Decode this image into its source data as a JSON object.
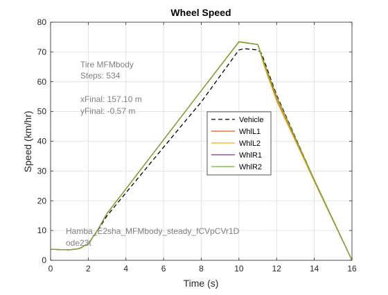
{
  "colors": {
    "background": "#ffffff",
    "axis": "#262626",
    "grid": "#dcdcdc",
    "annotation": "#808080",
    "vehicle": "#000000",
    "WhlL1": "#d95319",
    "WhlL2": "#edb120",
    "WhlR1": "#7e2f8e",
    "WhlR2": "#77ac30"
  },
  "annotations": {
    "tire": "Tire MFMbody",
    "steps": "Steps: 534",
    "xfinal": "xFinal: 157.10 m",
    "yfinal": "yFinal: -0.57 m",
    "model": "Hamba_E2sha_MFMbody_steady_fCVpCVr1D",
    "solver": "ode23t"
  },
  "chart_data": {
    "type": "line",
    "title": "Wheel Speed",
    "xlabel": "Time (s)",
    "ylabel": "Speed (km/hr)",
    "xlim": [
      0,
      16
    ],
    "ylim": [
      0,
      80
    ],
    "xticks": [
      0,
      2,
      4,
      6,
      8,
      10,
      12,
      14,
      16
    ],
    "yticks": [
      0,
      10,
      20,
      30,
      40,
      50,
      60,
      70,
      80
    ],
    "grid": true,
    "legend_position": "center-right",
    "series": [
      {
        "name": "Vehicle",
        "style": "dashed",
        "color": "#000000",
        "points": [
          [
            0,
            3.7
          ],
          [
            0.5,
            3.6
          ],
          [
            1.0,
            3.5
          ],
          [
            1.5,
            3.9
          ],
          [
            2.0,
            5.5
          ],
          [
            2.5,
            10.0
          ],
          [
            3.0,
            15.0
          ],
          [
            4.0,
            22.7
          ],
          [
            6.0,
            38.0
          ],
          [
            8.0,
            53.2
          ],
          [
            10.0,
            70.7
          ],
          [
            10.3,
            71.1
          ],
          [
            11.0,
            70.7
          ],
          [
            11.2,
            69.5
          ],
          [
            12.0,
            55.5
          ],
          [
            14.0,
            27.0
          ],
          [
            16.0,
            0.0
          ]
        ]
      },
      {
        "name": "WhlL1",
        "style": "solid",
        "color": "#d95319",
        "points": [
          [
            0,
            3.7
          ],
          [
            0.5,
            3.6
          ],
          [
            1.0,
            3.5
          ],
          [
            1.5,
            3.9
          ],
          [
            2.0,
            5.5
          ],
          [
            2.5,
            10.2
          ],
          [
            3.0,
            15.8
          ],
          [
            4.0,
            24.0
          ],
          [
            6.0,
            40.5
          ],
          [
            8.0,
            57.0
          ],
          [
            10.0,
            73.5
          ],
          [
            11.0,
            72.5
          ],
          [
            11.3,
            66.5
          ],
          [
            12.0,
            54.0
          ],
          [
            14.0,
            26.5
          ],
          [
            16.0,
            0.0
          ]
        ]
      },
      {
        "name": "WhlL2",
        "style": "solid",
        "color": "#edb120",
        "points": [
          [
            0,
            3.7
          ],
          [
            0.5,
            3.6
          ],
          [
            1.0,
            3.5
          ],
          [
            1.5,
            3.9
          ],
          [
            2.0,
            5.5
          ],
          [
            2.5,
            10.2
          ],
          [
            3.0,
            15.8
          ],
          [
            4.0,
            24.0
          ],
          [
            6.0,
            40.5
          ],
          [
            8.0,
            57.0
          ],
          [
            10.0,
            73.5
          ],
          [
            11.0,
            72.5
          ],
          [
            11.3,
            66.0
          ],
          [
            12.0,
            53.5
          ],
          [
            14.0,
            26.5
          ],
          [
            16.0,
            0.0
          ]
        ]
      },
      {
        "name": "WhlR1",
        "style": "solid",
        "color": "#7e2f8e",
        "points": [
          [
            0,
            3.7
          ],
          [
            0.5,
            3.6
          ],
          [
            1.0,
            3.5
          ],
          [
            1.5,
            3.9
          ],
          [
            2.0,
            5.5
          ],
          [
            2.5,
            10.2
          ],
          [
            3.0,
            15.8
          ],
          [
            4.0,
            24.0
          ],
          [
            6.0,
            40.5
          ],
          [
            8.0,
            57.0
          ],
          [
            10.0,
            73.4
          ],
          [
            11.0,
            72.5
          ],
          [
            11.3,
            67.0
          ],
          [
            12.0,
            55.0
          ],
          [
            14.0,
            27.0
          ],
          [
            16.0,
            0.0
          ]
        ]
      },
      {
        "name": "WhlR2",
        "style": "solid",
        "color": "#77ac30",
        "points": [
          [
            0,
            3.7
          ],
          [
            0.5,
            3.6
          ],
          [
            1.0,
            3.5
          ],
          [
            1.5,
            3.9
          ],
          [
            2.0,
            5.5
          ],
          [
            2.5,
            10.2
          ],
          [
            3.0,
            15.8
          ],
          [
            4.0,
            24.0
          ],
          [
            6.0,
            40.5
          ],
          [
            8.0,
            57.0
          ],
          [
            10.0,
            73.4
          ],
          [
            11.0,
            72.5
          ],
          [
            11.3,
            67.0
          ],
          [
            12.0,
            55.0
          ],
          [
            14.0,
            27.0
          ],
          [
            16.0,
            0.0
          ]
        ]
      }
    ]
  }
}
